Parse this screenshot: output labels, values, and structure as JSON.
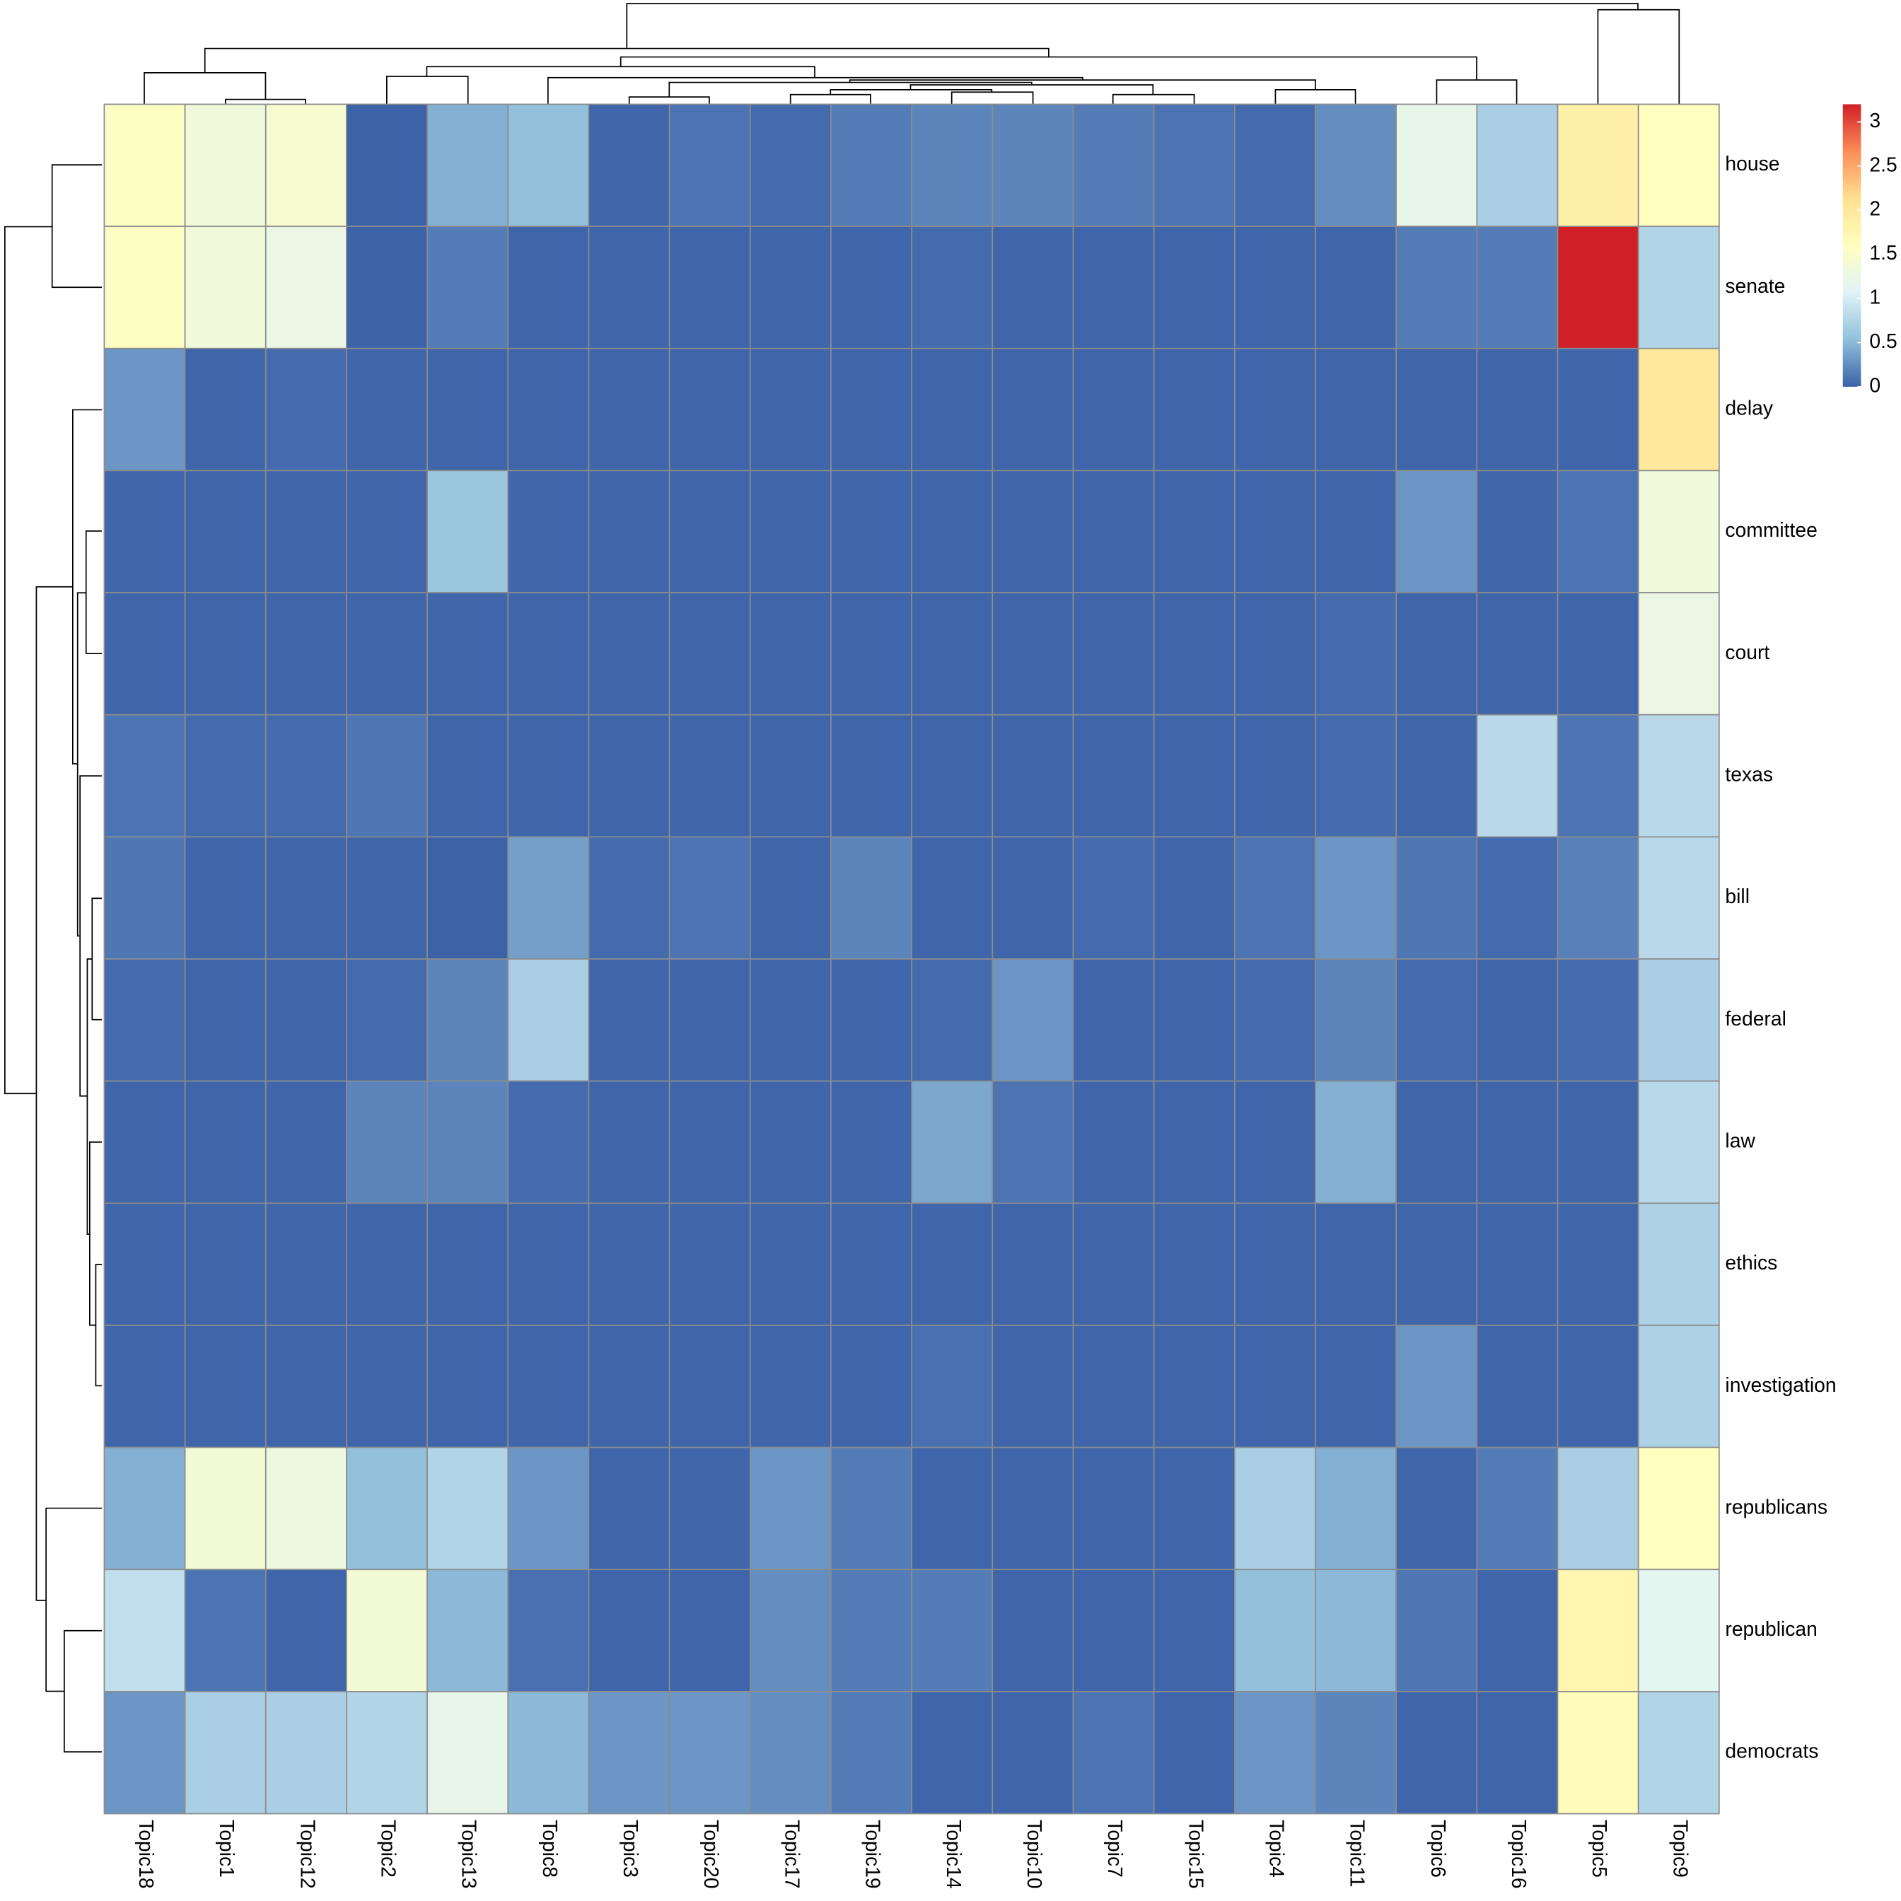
{
  "chart_data": {
    "type": "heatmap",
    "x": [
      "Topic18",
      "Topic1",
      "Topic12",
      "Topic2",
      "Topic13",
      "Topic8",
      "Topic3",
      "Topic20",
      "Topic17",
      "Topic19",
      "Topic14",
      "Topic10",
      "Topic7",
      "Topic15",
      "Topic4",
      "Topic11",
      "Topic6",
      "Topic16",
      "Topic5",
      "Topic9"
    ],
    "y": [
      "house",
      "senate",
      "delay",
      "committee",
      "court",
      "texas",
      "bill",
      "federal",
      "law",
      "ethics",
      "investigation",
      "republicans",
      "republican",
      "democrats"
    ],
    "z": [
      [
        1.55,
        1.35,
        1.45,
        0.0,
        0.45,
        0.55,
        0.02,
        0.1,
        0.05,
        0.15,
        0.2,
        0.2,
        0.15,
        0.1,
        0.05,
        0.25,
        1.2,
        0.7,
        1.85,
        1.6
      ],
      [
        1.55,
        1.35,
        1.25,
        0.0,
        0.15,
        0.02,
        0.02,
        0.02,
        0.02,
        0.02,
        0.05,
        0.02,
        0.02,
        0.02,
        0.02,
        0.02,
        0.15,
        0.15,
        3.2,
        0.75
      ],
      [
        0.3,
        0.02,
        0.05,
        0.02,
        0.02,
        0.02,
        0.02,
        0.02,
        0.02,
        0.02,
        0.02,
        0.02,
        0.02,
        0.02,
        0.02,
        0.02,
        0.02,
        0.02,
        0.02,
        2.0
      ],
      [
        0.02,
        0.02,
        0.02,
        0.02,
        0.6,
        0.02,
        0.02,
        0.02,
        0.02,
        0.02,
        0.02,
        0.02,
        0.02,
        0.02,
        0.02,
        0.02,
        0.3,
        0.02,
        0.1,
        1.35
      ],
      [
        0.02,
        0.02,
        0.02,
        0.02,
        0.02,
        0.02,
        0.02,
        0.02,
        0.02,
        0.02,
        0.02,
        0.02,
        0.02,
        0.02,
        0.02,
        0.05,
        0.02,
        0.02,
        0.02,
        1.25
      ],
      [
        0.1,
        0.05,
        0.05,
        0.12,
        0.02,
        0.02,
        0.02,
        0.02,
        0.02,
        0.02,
        0.02,
        0.02,
        0.02,
        0.02,
        0.02,
        0.05,
        0.02,
        0.8,
        0.1,
        0.8
      ],
      [
        0.12,
        0.02,
        0.02,
        0.02,
        0.0,
        0.35,
        0.05,
        0.1,
        0.02,
        0.2,
        0.02,
        0.02,
        0.05,
        0.02,
        0.1,
        0.3,
        0.12,
        0.05,
        0.18,
        0.8
      ],
      [
        0.05,
        0.02,
        0.02,
        0.05,
        0.2,
        0.7,
        0.02,
        0.02,
        0.02,
        0.02,
        0.05,
        0.3,
        0.02,
        0.02,
        0.05,
        0.2,
        0.05,
        0.02,
        0.05,
        0.7
      ],
      [
        0.02,
        0.02,
        0.02,
        0.2,
        0.2,
        0.05,
        0.02,
        0.02,
        0.02,
        0.02,
        0.4,
        0.1,
        0.02,
        0.02,
        0.02,
        0.45,
        0.02,
        0.02,
        0.02,
        0.8
      ],
      [
        0.02,
        0.02,
        0.02,
        0.02,
        0.02,
        0.02,
        0.02,
        0.02,
        0.02,
        0.02,
        0.02,
        0.02,
        0.02,
        0.02,
        0.02,
        0.02,
        0.02,
        0.02,
        0.02,
        0.72
      ],
      [
        0.02,
        0.02,
        0.02,
        0.02,
        0.02,
        0.02,
        0.02,
        0.02,
        0.02,
        0.02,
        0.08,
        0.02,
        0.02,
        0.02,
        0.02,
        0.02,
        0.3,
        0.02,
        0.02,
        0.72
      ],
      [
        0.45,
        1.4,
        1.3,
        0.55,
        0.75,
        0.3,
        0.02,
        0.02,
        0.3,
        0.15,
        0.02,
        0.02,
        0.02,
        0.02,
        0.7,
        0.45,
        0.02,
        0.15,
        0.7,
        1.6
      ],
      [
        0.85,
        0.1,
        0.02,
        1.4,
        0.5,
        0.08,
        0.02,
        0.02,
        0.25,
        0.15,
        0.15,
        0.02,
        0.02,
        0.02,
        0.55,
        0.5,
        0.12,
        0.02,
        1.75,
        1.15
      ],
      [
        0.3,
        0.7,
        0.7,
        0.75,
        1.2,
        0.5,
        0.3,
        0.3,
        0.25,
        0.15,
        0.02,
        0.02,
        0.1,
        0.02,
        0.3,
        0.2,
        0.02,
        0.02,
        1.65,
        0.75
      ]
    ],
    "clim": [
      0,
      3.2
    ],
    "colorbar_ticks": [
      0,
      0.5,
      1,
      1.5,
      2,
      2.5,
      3
    ],
    "colormap": [
      "#3c62a8",
      "#91bfdb",
      "#e0f3f8",
      "#ffffbf",
      "#fee090",
      "#fc8d59",
      "#d01f26"
    ],
    "cell_border": "#8c8c8c"
  }
}
